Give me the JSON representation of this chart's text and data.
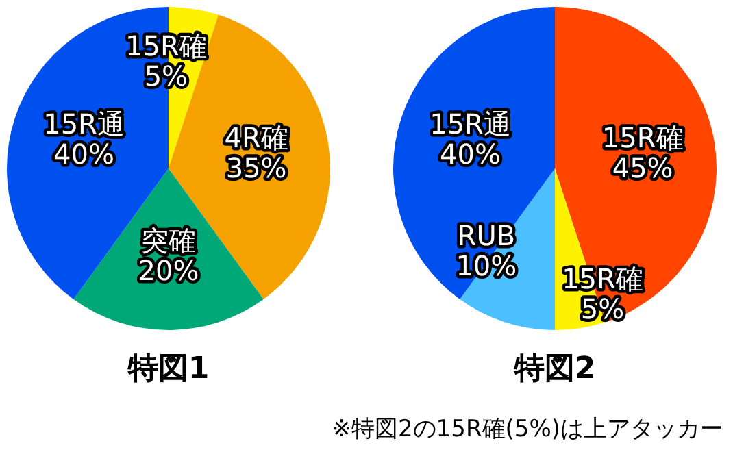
{
  "chart_data": [
    {
      "type": "pie",
      "title": "特図1",
      "categories": [
        "15R確",
        "4R確",
        "突確",
        "15R通"
      ],
      "values": [
        5,
        35,
        20,
        40
      ],
      "colors": [
        "#fff200",
        "#f5a100",
        "#00a878",
        "#0050f0"
      ],
      "value_labels": [
        "5%",
        "35%",
        "20%",
        "40%"
      ]
    },
    {
      "type": "pie",
      "title": "特図2",
      "categories": [
        "15R確",
        "15R確",
        "RUB",
        "15R通"
      ],
      "values": [
        45,
        5,
        10,
        40
      ],
      "colors": [
        "#ff4500",
        "#fff200",
        "#4cc0ff",
        "#0050f0"
      ],
      "value_labels": [
        "45%",
        "5%",
        "10%",
        "40%"
      ],
      "annotations": [
        "※特図2の15R確(5%)は上アタッカー"
      ]
    }
  ]
}
